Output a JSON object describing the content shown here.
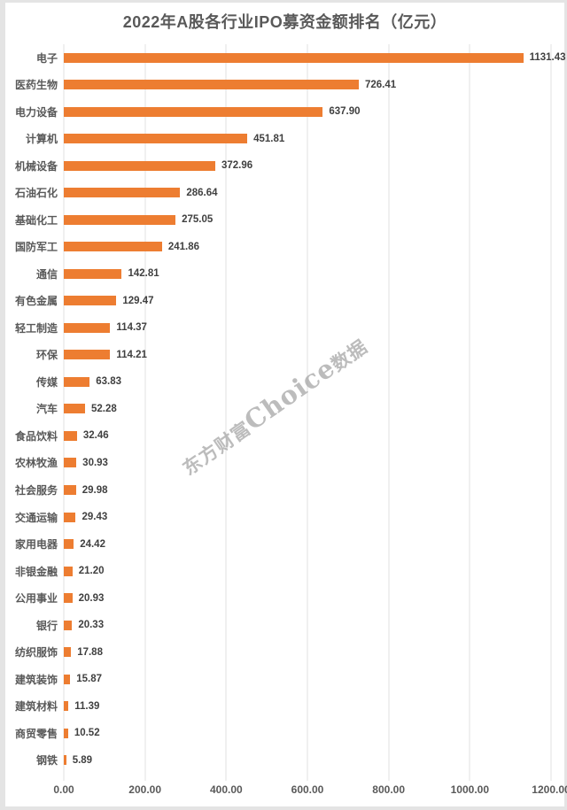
{
  "title": "2022年A股各行业IPO募资金额排名（亿元）",
  "watermark": {
    "prefix": "东方财富",
    "brand": "Choice",
    "suffix": "数据"
  },
  "colors": {
    "bar": "#ED7D31",
    "title_text": "#595959",
    "axis_label_text": "#595959",
    "value_label_text": "#404040",
    "gridline": "#e1e1e1",
    "frame_background": "#e4e4e4",
    "panel_background": "#ffffff",
    "watermark_text": "#a6a6a6"
  },
  "chart_data": {
    "type": "bar",
    "orientation": "horizontal",
    "title": "2022年A股各行业IPO募资金额排名（亿元）",
    "xlabel": "",
    "ylabel": "",
    "xlim": [
      0,
      1200
    ],
    "grid": true,
    "legend": false,
    "x_tick_labels": [
      "0.00",
      "200.00",
      "400.00",
      "600.00",
      "800.00",
      "1000.00",
      "1200.00"
    ],
    "x_tick_values": [
      0,
      200,
      400,
      600,
      800,
      1000,
      1200
    ],
    "value_label_decimals": 2,
    "categories": [
      "电子",
      "医药生物",
      "电力设备",
      "计算机",
      "机械设备",
      "石油石化",
      "基础化工",
      "国防军工",
      "通信",
      "有色金属",
      "轻工制造",
      "环保",
      "传媒",
      "汽车",
      "食品饮料",
      "农林牧渔",
      "社会服务",
      "交通运输",
      "家用电器",
      "非银金融",
      "公用事业",
      "银行",
      "纺织服饰",
      "建筑装饰",
      "建筑材料",
      "商贸零售",
      "钢铁"
    ],
    "values": [
      1131.43,
      726.41,
      637.9,
      451.81,
      372.96,
      286.64,
      275.05,
      241.86,
      142.81,
      129.47,
      114.37,
      114.21,
      63.83,
      52.28,
      32.46,
      30.93,
      29.98,
      29.43,
      24.42,
      21.2,
      20.93,
      20.33,
      17.88,
      15.87,
      11.39,
      10.52,
      5.89
    ]
  }
}
